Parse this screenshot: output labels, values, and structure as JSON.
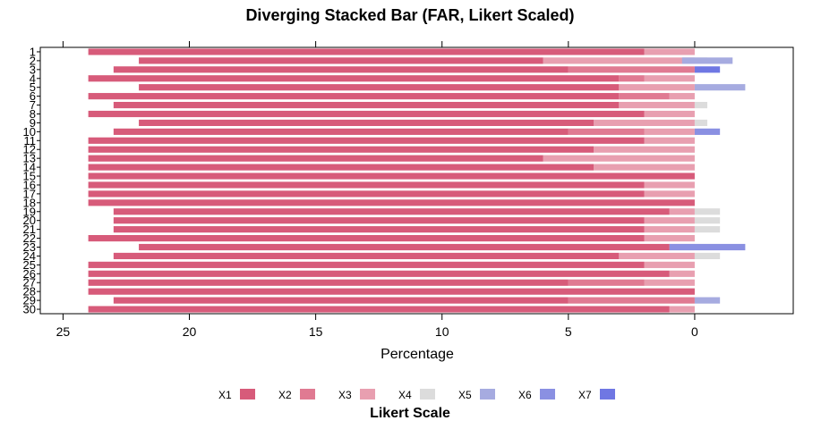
{
  "chart_data": {
    "type": "bar",
    "orientation": "horizontal",
    "stacked": true,
    "diverging": true,
    "title": "Diverging Stacked Bar (FAR, Likert Scaled)",
    "xlabel": "Percentage",
    "xlim": [
      25.9,
      -3.9
    ],
    "x_ticks": [
      25,
      20,
      15,
      10,
      5,
      0
    ],
    "grid": false,
    "legend": {
      "title": "Likert Scale",
      "position": "bottom",
      "entries": [
        "X1",
        "X2",
        "X3",
        "X4",
        "X5",
        "X6",
        "X7"
      ]
    },
    "colors": [
      "#d75b7a",
      "#e07a92",
      "#e89fb0",
      "#dcdcdc",
      "#a6abe0",
      "#8a90e2",
      "#6f77e3"
    ],
    "categories": [
      "1",
      "2",
      "3",
      "4",
      "5",
      "6",
      "7",
      "8",
      "9",
      "10",
      "11",
      "12",
      "13",
      "14",
      "15",
      "16",
      "17",
      "18",
      "19",
      "20",
      "21",
      "22",
      "23",
      "24",
      "25",
      "26",
      "27",
      "28",
      "29",
      "30"
    ],
    "series": [
      {
        "name": "X1",
        "values": [
          22,
          16,
          18,
          21,
          19,
          21,
          20,
          22,
          18,
          18,
          22,
          20,
          18,
          20,
          24,
          22,
          22,
          24,
          22,
          21,
          21,
          22,
          21,
          20,
          22,
          23,
          19,
          24,
          18,
          23
        ]
      },
      {
        "name": "X2",
        "values": [
          0,
          0,
          5,
          1,
          0,
          2,
          0,
          0,
          0,
          3,
          0,
          0,
          0,
          0,
          0,
          0,
          0,
          0,
          0,
          0,
          0,
          0,
          0,
          0,
          0,
          0,
          3,
          0,
          5,
          0
        ]
      },
      {
        "name": "X3",
        "values": [
          2,
          6,
          0,
          2,
          3,
          1,
          3,
          2,
          4,
          2,
          2,
          4,
          6,
          4,
          0,
          2,
          2,
          0,
          1,
          2,
          2,
          2,
          1,
          3,
          2,
          1,
          2,
          0,
          0,
          1
        ]
      },
      {
        "name": "X4",
        "values": [
          0,
          0.5,
          0,
          0,
          0,
          0,
          0.5,
          0,
          0.5,
          0,
          0,
          0,
          0,
          0,
          0,
          0,
          0,
          0,
          1,
          1,
          1,
          0,
          1,
          1,
          0,
          0,
          0,
          0,
          0,
          0
        ]
      },
      {
        "name": "X5",
        "values": [
          0,
          1,
          0,
          0,
          2,
          0,
          0,
          0,
          0,
          0,
          0,
          0,
          0,
          0,
          0,
          0,
          0,
          0,
          0,
          0,
          0,
          0,
          0,
          0,
          0,
          0,
          0,
          0,
          1,
          0
        ]
      },
      {
        "name": "X6",
        "values": [
          0,
          0,
          0,
          0,
          0,
          0,
          0,
          0,
          0,
          1,
          0,
          0,
          0,
          0,
          0,
          0,
          0,
          0,
          0,
          0,
          0,
          0,
          1,
          0,
          0,
          0,
          0,
          0,
          0,
          0
        ]
      },
      {
        "name": "X7",
        "values": [
          0,
          0,
          1,
          0,
          0,
          0,
          0,
          0,
          0,
          0,
          0,
          0,
          0,
          0,
          0,
          0,
          0,
          0,
          0,
          0,
          0,
          0,
          0,
          0,
          0,
          0,
          0,
          0,
          0,
          0
        ]
      }
    ]
  }
}
